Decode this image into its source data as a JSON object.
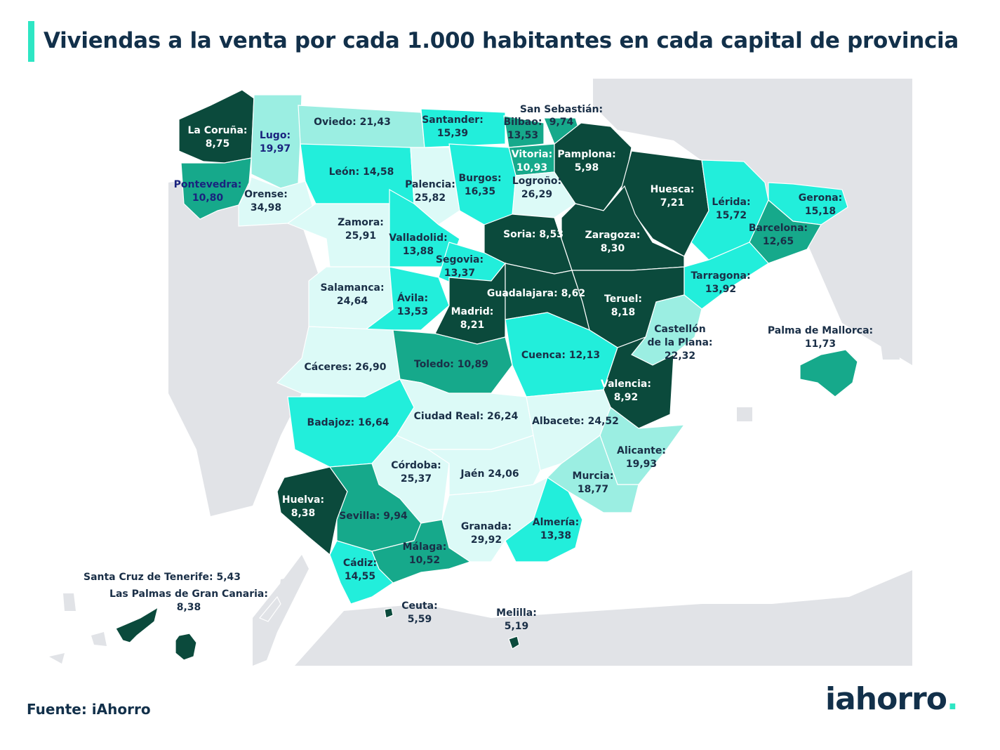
{
  "title": "Viviendas a la venta por cada 1.000 habitantes en cada capital de provincia",
  "source": "Fuente: iAhorro",
  "logo": {
    "text": "iahorro",
    "dot": "."
  },
  "colors": {
    "darkest": "#0b4a3c",
    "dark": "#16a98b",
    "medium": "#22eedb",
    "light": "#9beee2",
    "lightest": "#dcfaf7",
    "background_land": "#e1e3e7",
    "title_accent": "#2ee6c4"
  },
  "provinces": [
    {
      "name": "La Coruña:",
      "value": "8,75"
    },
    {
      "name": "Lugo:",
      "value": "19,97"
    },
    {
      "name": "Oviedo: 21,43",
      "value": ""
    },
    {
      "name": "Santander:",
      "value": "15,39"
    },
    {
      "name": "San Sebastián:",
      "value": ""
    },
    {
      "name": "Bilbao:",
      "value": "13,53"
    },
    {
      "name": "9,74",
      "value": ""
    },
    {
      "name": "Vitoria:",
      "value": "10,93"
    },
    {
      "name": "Pamplona:",
      "value": "5,98"
    },
    {
      "name": "León: 14,58",
      "value": ""
    },
    {
      "name": "Pontevedra:",
      "value": "10,80"
    },
    {
      "name": "Orense:",
      "value": "34,98"
    },
    {
      "name": "Palencia:",
      "value": "25,82"
    },
    {
      "name": "Burgos:",
      "value": "16,35"
    },
    {
      "name": "Logroño:",
      "value": "26,29"
    },
    {
      "name": "Huesca:",
      "value": "7,21"
    },
    {
      "name": "Lérida:",
      "value": "15,72"
    },
    {
      "name": "Gerona:",
      "value": "15,18"
    },
    {
      "name": "Zamora:",
      "value": "25,91"
    },
    {
      "name": "Valladolid:",
      "value": "13,88"
    },
    {
      "name": "Soria: 8,53",
      "value": ""
    },
    {
      "name": "Zaragoza:",
      "value": "8,30"
    },
    {
      "name": "Barcelona:",
      "value": "12,65"
    },
    {
      "name": "Segovia:",
      "value": "13,37"
    },
    {
      "name": "Tarragona:",
      "value": "13,92"
    },
    {
      "name": "Salamanca:",
      "value": "24,64"
    },
    {
      "name": "Ávila:",
      "value": "13,53"
    },
    {
      "name": "Guadalajara: 8,62",
      "value": ""
    },
    {
      "name": "Teruel:",
      "value": "8,18"
    },
    {
      "name": "Madrid:",
      "value": "8,21"
    },
    {
      "name": "Castellón",
      "value": "de la Plana:"
    },
    {
      "name": "22,32",
      "value": ""
    },
    {
      "name": "Palma de Mallorca:",
      "value": "11,73"
    },
    {
      "name": "Cáceres: 26,90",
      "value": ""
    },
    {
      "name": "Toledo: 10,89",
      "value": ""
    },
    {
      "name": "Cuenca: 12,13",
      "value": ""
    },
    {
      "name": "Valencia:",
      "value": "8,92"
    },
    {
      "name": "Badajoz: 16,64",
      "value": ""
    },
    {
      "name": "Ciudad Real: 26,24",
      "value": ""
    },
    {
      "name": "Albacete: 24,52",
      "value": ""
    },
    {
      "name": "Alicante:",
      "value": "19,93"
    },
    {
      "name": "Córdoba:",
      "value": "25,37"
    },
    {
      "name": "Jaén 24,06",
      "value": ""
    },
    {
      "name": "Murcia:",
      "value": "18,77"
    },
    {
      "name": "Huelva:",
      "value": "8,38"
    },
    {
      "name": "Sevilla: 9,94",
      "value": ""
    },
    {
      "name": "Almería:",
      "value": "13,38"
    },
    {
      "name": "Granada:",
      "value": "29,92"
    },
    {
      "name": "Málaga:",
      "value": "10,52"
    },
    {
      "name": "Cádiz:",
      "value": "14,55"
    },
    {
      "name": "Santa Cruz de Tenerife: 5,43",
      "value": ""
    },
    {
      "name": "Las Palmas de Gran Canaria:",
      "value": "8,38"
    },
    {
      "name": "Ceuta:",
      "value": "5,59"
    },
    {
      "name": "Melilla:",
      "value": "5,19"
    }
  ]
}
